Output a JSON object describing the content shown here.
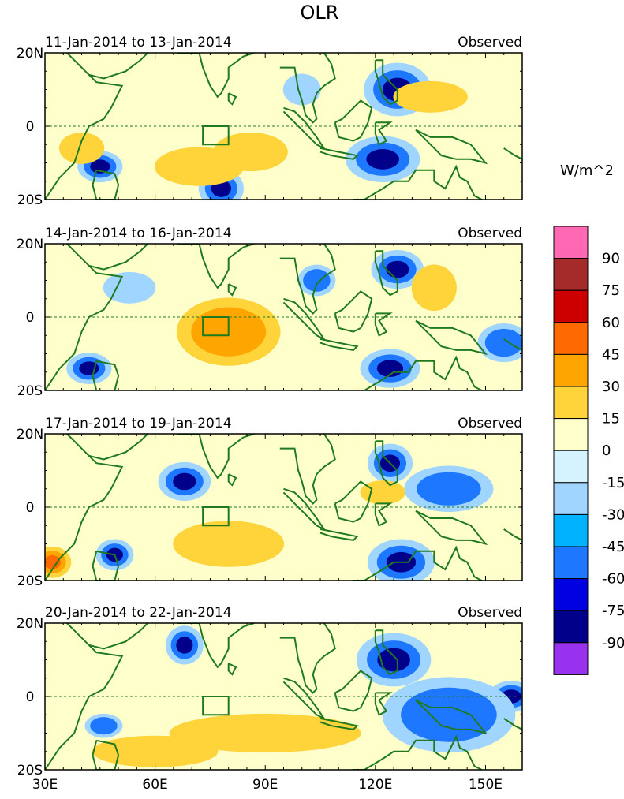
{
  "figure": {
    "title": "OLR",
    "units_label": "W/m^2"
  },
  "panels": [
    {
      "date_range": "11-Jan-2014 to 13-Jan-2014",
      "source_label": "Observed"
    },
    {
      "date_range": "14-Jan-2014 to 16-Jan-2014",
      "source_label": "Observed"
    },
    {
      "date_range": "17-Jan-2014 to 19-Jan-2014",
      "source_label": "Observed"
    },
    {
      "date_range": "20-Jan-2014 to 22-Jan-2014",
      "source_label": "Observed"
    }
  ],
  "axes": {
    "lat_ticks": [
      {
        "value": 20,
        "label": "20N"
      },
      {
        "value": 0,
        "label": "0"
      },
      {
        "value": -20,
        "label": "20S"
      }
    ],
    "lon_ticks": [
      {
        "value": 30,
        "label": "30E"
      },
      {
        "value": 60,
        "label": "60E"
      },
      {
        "value": 90,
        "label": "90E"
      },
      {
        "value": 120,
        "label": "120E"
      },
      {
        "value": 150,
        "label": "150E"
      }
    ],
    "lon_range": [
      30,
      160
    ],
    "lat_range": [
      -20,
      20
    ]
  },
  "index_box": {
    "lon_min": 73,
    "lon_max": 80,
    "lat_min": -5,
    "lat_max": 0
  },
  "colorbar": {
    "colors": [
      "#ff69b4",
      "#a52a2a",
      "#cc0000",
      "#ff6a00",
      "#ffa500",
      "#ffd33a",
      "#ffffcc",
      "#d4f3ff",
      "#9fd5ff",
      "#00b2ff",
      "#1e78ff",
      "#0000e0",
      "#00008b",
      "#9932ee"
    ],
    "labels": [
      "90",
      "75",
      "60",
      "45",
      "30",
      "15",
      "0",
      "-15",
      "-30",
      "-45",
      "-60",
      "-75",
      "-90"
    ]
  },
  "blobs": [
    [
      {
        "lon": 126,
        "lat": 10,
        "rx": 7,
        "ry": 6,
        "level": -3
      },
      {
        "lon": 122,
        "lat": -9,
        "rx": 8,
        "ry": 5,
        "level": -3
      },
      {
        "lon": 78,
        "lat": -17,
        "rx": 4,
        "ry": 4,
        "level": -3
      },
      {
        "lon": 45,
        "lat": -11,
        "rx": 4,
        "ry": 3,
        "level": -3
      },
      {
        "lon": 86,
        "lat": -7,
        "rx": 8,
        "ry": 4,
        "level": 1
      },
      {
        "lon": 72,
        "lat": -11,
        "rx": 10,
        "ry": 4,
        "level": 1
      },
      {
        "lon": 135,
        "lat": 8,
        "rx": 8,
        "ry": 3,
        "level": 1
      },
      {
        "lon": 100,
        "lat": 10,
        "rx": 3,
        "ry": 3,
        "level": -1
      },
      {
        "lon": 40,
        "lat": -6,
        "rx": 4,
        "ry": 3,
        "level": 1
      }
    ],
    [
      {
        "lon": 126,
        "lat": 13,
        "rx": 5,
        "ry": 4,
        "level": -3
      },
      {
        "lon": 124,
        "lat": -14,
        "rx": 6,
        "ry": 4,
        "level": -3
      },
      {
        "lon": 42,
        "lat": -14,
        "rx": 4,
        "ry": 3,
        "level": -3
      },
      {
        "lon": 155,
        "lat": -7,
        "rx": 5,
        "ry": 4,
        "level": -2
      },
      {
        "lon": 80,
        "lat": -4,
        "rx": 12,
        "ry": 8,
        "level": 2
      },
      {
        "lon": 136,
        "lat": 8,
        "rx": 4,
        "ry": 5,
        "level": 1
      },
      {
        "lon": 104,
        "lat": 10,
        "rx": 3,
        "ry": 3,
        "level": -2
      },
      {
        "lon": 53,
        "lat": 8,
        "rx": 5,
        "ry": 3,
        "level": -1
      }
    ],
    [
      {
        "lon": 124,
        "lat": 12,
        "rx": 4,
        "ry": 4,
        "level": -3
      },
      {
        "lon": 127,
        "lat": -15,
        "rx": 7,
        "ry": 5,
        "level": -3
      },
      {
        "lon": 68,
        "lat": 7,
        "rx": 5,
        "ry": 4,
        "level": -3
      },
      {
        "lon": 49,
        "lat": -13,
        "rx": 3,
        "ry": 3,
        "level": -3
      },
      {
        "lon": 80,
        "lat": -10,
        "rx": 13,
        "ry": 5,
        "level": 1
      },
      {
        "lon": 32,
        "lat": -15,
        "rx": 3,
        "ry": 3,
        "level": 3
      },
      {
        "lon": 140,
        "lat": 5,
        "rx": 10,
        "ry": 5,
        "level": -2
      },
      {
        "lon": 122,
        "lat": 4,
        "rx": 4,
        "ry": 2,
        "level": 1
      }
    ],
    [
      {
        "lon": 68,
        "lat": 14,
        "rx": 3,
        "ry": 4,
        "level": -3
      },
      {
        "lon": 125,
        "lat": 10,
        "rx": 8,
        "ry": 6,
        "level": -3
      },
      {
        "lon": 157,
        "lat": 0,
        "rx": 4,
        "ry": 3,
        "level": -3
      },
      {
        "lon": 90,
        "lat": -10,
        "rx": 24,
        "ry": 4,
        "level": 1
      },
      {
        "lon": 60,
        "lat": -15,
        "rx": 15,
        "ry": 3,
        "level": 1
      },
      {
        "lon": 140,
        "lat": -5,
        "rx": 16,
        "ry": 9,
        "level": -2
      },
      {
        "lon": 46,
        "lat": -8,
        "rx": 3,
        "ry": 2,
        "level": -2
      }
    ]
  ]
}
